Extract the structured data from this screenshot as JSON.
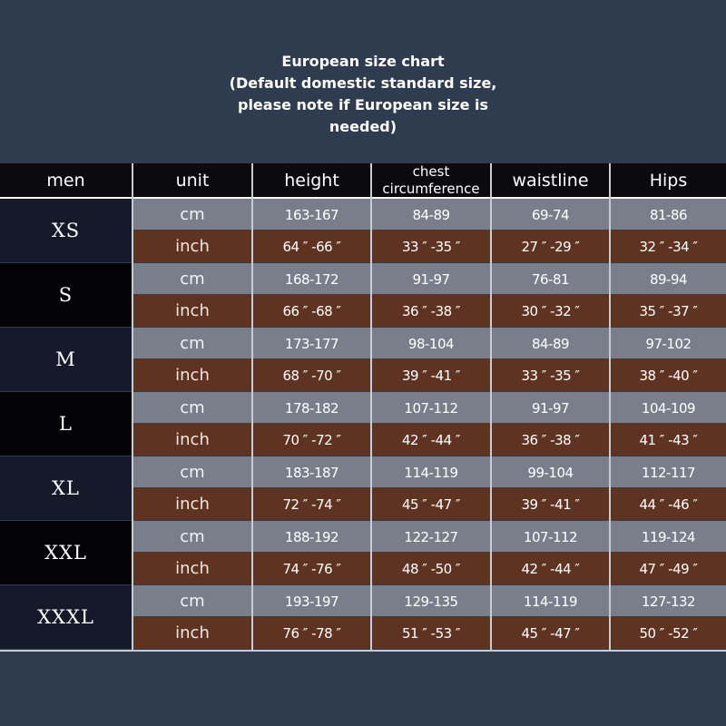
{
  "title": {
    "line1": "European size chart",
    "line2": "(Default domestic standard size,",
    "line3": "please note if European size is",
    "line4": "needed)"
  },
  "header": {
    "men": "men",
    "unit": "unit",
    "height": "height",
    "chest_line1": "chest",
    "chest_line2": "circumference",
    "waistline": "waistline",
    "hips": "Hips"
  },
  "rows": [
    {
      "size": "XS",
      "cm": {
        "unit": "cm",
        "height": "163-167",
        "chest": "84-89",
        "waist": "69-74",
        "hips": "81-86"
      },
      "inch": {
        "unit": "inch",
        "height": "64 ″ -66 ″",
        "chest": "33 ″ -35 ″",
        "waist": "27 ″ -29 ″",
        "hips": "32 ″ -34 ″"
      }
    },
    {
      "size": "S",
      "cm": {
        "unit": "cm",
        "height": "168-172",
        "chest": "91-97",
        "waist": "76-81",
        "hips": "89-94"
      },
      "inch": {
        "unit": "inch",
        "height": "66 ″ -68 ″",
        "chest": "36 ″ -38 ″",
        "waist": "30 ″ -32 ″",
        "hips": "35 ″ -37 ″"
      }
    },
    {
      "size": "M",
      "cm": {
        "unit": "cm",
        "height": "173-177",
        "chest": "98-104",
        "waist": "84-89",
        "hips": "97-102"
      },
      "inch": {
        "unit": "inch",
        "height": "68 ″ -70 ″",
        "chest": "39 ″ -41 ″",
        "waist": "33 ″ -35 ″",
        "hips": "38 ″ -40 ″"
      }
    },
    {
      "size": "L",
      "cm": {
        "unit": "cm",
        "height": "178-182",
        "chest": "107-112",
        "waist": "91-97",
        "hips": "104-109"
      },
      "inch": {
        "unit": "inch",
        "height": "70 ″ -72 ″",
        "chest": "42 ″ -44 ″",
        "waist": "36 ″ -38 ″",
        "hips": "41 ″ -43 ″"
      }
    },
    {
      "size": "XL",
      "cm": {
        "unit": "cm",
        "height": "183-187",
        "chest": "114-119",
        "waist": "99-104",
        "hips": "112-117"
      },
      "inch": {
        "unit": "inch",
        "height": "72 ″ -74 ″",
        "chest": "45 ″ -47 ″",
        "waist": "39 ″ -41 ″",
        "hips": "44 ″ -46 ″"
      }
    },
    {
      "size": "XXL",
      "cm": {
        "unit": "cm",
        "height": "188-192",
        "chest": "122-127",
        "waist": "107-112",
        "hips": "119-124"
      },
      "inch": {
        "unit": "inch",
        "height": "74 ″ -76 ″",
        "chest": "48 ″ -50 ″",
        "waist": "42 ″ -44 ″",
        "hips": "47 ″ -49 ″"
      }
    },
    {
      "size": "XXXL",
      "cm": {
        "unit": "cm",
        "height": "193-197",
        "chest": "129-135",
        "waist": "114-119",
        "hips": "127-132"
      },
      "inch": {
        "unit": "inch",
        "height": "76 ″ -78 ″",
        "chest": "51 ″ -53 ″",
        "waist": "45 ″ -47 ″",
        "hips": "50 ″ -52 ″"
      }
    }
  ]
}
